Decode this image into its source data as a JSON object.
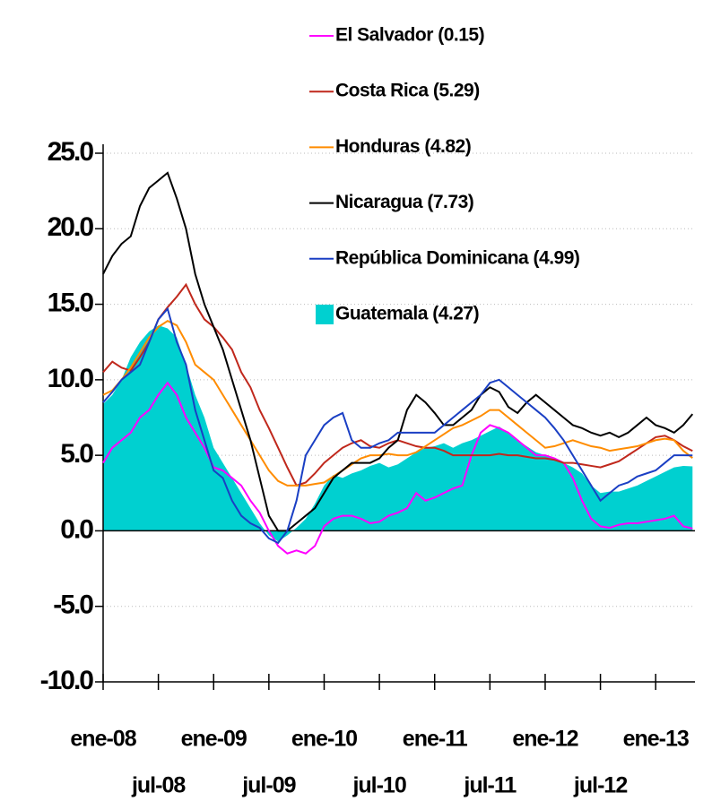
{
  "chart_data": {
    "type": "line",
    "categories": [
      "ene-08",
      null,
      null,
      null,
      null,
      null,
      "jul-08",
      null,
      null,
      null,
      null,
      null,
      "ene-09",
      null,
      null,
      null,
      null,
      null,
      "jul-09",
      null,
      null,
      null,
      null,
      null,
      "ene-10",
      null,
      null,
      null,
      null,
      null,
      "jul-10",
      null,
      null,
      null,
      null,
      null,
      "ene-11",
      null,
      null,
      null,
      null,
      null,
      "jul-11",
      null,
      null,
      null,
      null,
      null,
      "ene-12",
      null,
      null,
      null,
      null,
      null,
      "jul-12",
      null,
      null,
      null,
      null,
      null,
      "ene-13",
      null,
      null,
      null,
      null
    ],
    "ylim": [
      -10,
      25
    ],
    "yticks": [
      {
        "value": -10,
        "label": "-10.0"
      },
      {
        "value": -5,
        "label": "-5.0"
      },
      {
        "value": 0,
        "label": "0.0"
      },
      {
        "value": 5,
        "label": "5.0"
      },
      {
        "value": 10,
        "label": "10.0"
      },
      {
        "value": 15,
        "label": "15.0"
      },
      {
        "value": 20,
        "label": "20.0"
      },
      {
        "value": 25,
        "label": "25.0"
      }
    ],
    "grid": true,
    "legend": "top-right",
    "series": [
      {
        "name": "El Salvador (0.15)",
        "color": "#ff00ff",
        "type": "line",
        "values": [
          4.5,
          5.5,
          6.0,
          6.5,
          7.5,
          8.0,
          9.0,
          9.8,
          9.0,
          7.5,
          6.5,
          5.5,
          4.2,
          4.0,
          3.5,
          3.0,
          2.0,
          1.2,
          0.0,
          -1.0,
          -1.5,
          -1.3,
          -1.5,
          -1.0,
          0.3,
          0.8,
          1.0,
          1.0,
          0.8,
          0.5,
          0.6,
          1.0,
          1.2,
          1.5,
          2.5,
          2.0,
          2.2,
          2.5,
          2.8,
          3.0,
          5.0,
          6.5,
          7.0,
          6.8,
          6.5,
          6.0,
          5.5,
          5.0,
          5.0,
          4.8,
          4.5,
          3.5,
          2.0,
          0.8,
          0.3,
          0.2,
          0.4,
          0.5,
          0.5,
          0.6,
          0.7,
          0.8,
          1.0,
          0.3,
          0.15
        ]
      },
      {
        "name": "Costa Rica (5.29)",
        "color": "#c0281c",
        "type": "line",
        "values": [
          10.5,
          11.2,
          10.8,
          10.6,
          11.5,
          12.5,
          14.0,
          14.8,
          15.5,
          16.3,
          15.0,
          14.0,
          13.5,
          12.8,
          12.0,
          10.5,
          9.5,
          8.0,
          6.8,
          5.5,
          4.2,
          3.0,
          3.2,
          3.8,
          4.5,
          5.0,
          5.5,
          5.8,
          6.0,
          5.6,
          5.5,
          5.8,
          6.0,
          5.8,
          5.6,
          5.5,
          5.5,
          5.3,
          5.0,
          5.0,
          5.0,
          5.0,
          5.0,
          5.1,
          5.0,
          5.0,
          4.9,
          4.8,
          4.8,
          4.7,
          4.5,
          4.5,
          4.4,
          4.3,
          4.2,
          4.4,
          4.6,
          5.0,
          5.4,
          5.8,
          6.2,
          6.3,
          6.0,
          5.6,
          5.29
        ]
      },
      {
        "name": "Honduras (4.82)",
        "color": "#ff8c00",
        "type": "line",
        "values": [
          9.0,
          9.3,
          10.0,
          10.8,
          11.8,
          12.8,
          13.5,
          13.9,
          13.6,
          12.5,
          11.0,
          10.5,
          10.0,
          9.0,
          8.0,
          7.0,
          6.0,
          5.0,
          4.0,
          3.3,
          3.0,
          3.0,
          3.0,
          3.1,
          3.2,
          3.6,
          4.0,
          4.4,
          4.8,
          5.0,
          5.0,
          5.1,
          5.0,
          5.0,
          5.2,
          5.6,
          6.0,
          6.4,
          6.8,
          7.0,
          7.3,
          7.6,
          8.0,
          8.0,
          7.5,
          7.0,
          6.5,
          6.0,
          5.5,
          5.6,
          5.8,
          6.0,
          5.8,
          5.6,
          5.5,
          5.3,
          5.4,
          5.5,
          5.6,
          5.8,
          6.0,
          6.1,
          6.0,
          5.3,
          4.82
        ]
      },
      {
        "name": "Nicaragua (7.73)",
        "color": "#000000",
        "type": "line",
        "values": [
          17.0,
          18.2,
          19.0,
          19.5,
          21.5,
          22.7,
          23.2,
          23.7,
          22.0,
          20.0,
          17.0,
          15.0,
          13.5,
          12.0,
          10.0,
          8.0,
          6.0,
          3.5,
          1.0,
          0.0,
          0.0,
          0.5,
          1.0,
          1.5,
          2.5,
          3.5,
          4.0,
          4.5,
          4.5,
          4.5,
          4.8,
          5.5,
          6.0,
          8.0,
          9.0,
          8.5,
          7.8,
          7.0,
          7.0,
          7.5,
          8.0,
          9.0,
          9.5,
          9.2,
          8.2,
          7.8,
          8.5,
          9.0,
          8.5,
          8.0,
          7.5,
          7.0,
          6.8,
          6.5,
          6.3,
          6.5,
          6.2,
          6.5,
          7.0,
          7.5,
          7.0,
          6.8,
          6.5,
          7.0,
          7.73
        ]
      },
      {
        "name": "República Dominicana (4.99)",
        "color": "#1a3fc4",
        "type": "line",
        "values": [
          8.5,
          9.2,
          10.0,
          10.5,
          11.0,
          12.5,
          14.0,
          14.7,
          12.5,
          11.0,
          8.0,
          6.0,
          4.0,
          3.5,
          2.0,
          1.0,
          0.5,
          0.2,
          -0.5,
          -0.8,
          0.0,
          2.0,
          5.0,
          6.0,
          7.0,
          7.5,
          7.8,
          6.0,
          5.5,
          5.5,
          5.8,
          6.0,
          6.5,
          6.5,
          6.5,
          6.5,
          6.5,
          7.0,
          7.5,
          8.0,
          8.5,
          9.0,
          9.8,
          10.0,
          9.5,
          9.0,
          8.5,
          8.0,
          7.5,
          6.8,
          6.0,
          5.0,
          4.0,
          3.0,
          2.0,
          2.5,
          3.0,
          3.2,
          3.6,
          3.8,
          4.0,
          4.5,
          5.0,
          5.0,
          4.99
        ]
      },
      {
        "name": "Guatemala (4.27)",
        "color": "#00d0d0",
        "type": "area",
        "values": [
          8.4,
          9.0,
          10.0,
          11.5,
          12.5,
          13.2,
          13.6,
          13.4,
          12.8,
          11.0,
          9.0,
          7.5,
          5.5,
          4.5,
          3.5,
          2.5,
          1.5,
          0.5,
          -0.3,
          -0.7,
          -0.3,
          0.2,
          0.8,
          1.8,
          3.0,
          3.7,
          3.5,
          3.8,
          4.0,
          4.3,
          4.5,
          4.2,
          4.4,
          4.8,
          5.2,
          5.5,
          5.6,
          5.8,
          5.5,
          5.8,
          6.0,
          6.3,
          6.6,
          6.9,
          6.5,
          6.0,
          5.6,
          5.2,
          5.0,
          4.8,
          4.5,
          4.2,
          3.8,
          3.0,
          2.5,
          2.6,
          2.6,
          2.8,
          3.0,
          3.3,
          3.6,
          3.9,
          4.2,
          4.3,
          4.27
        ]
      }
    ]
  }
}
